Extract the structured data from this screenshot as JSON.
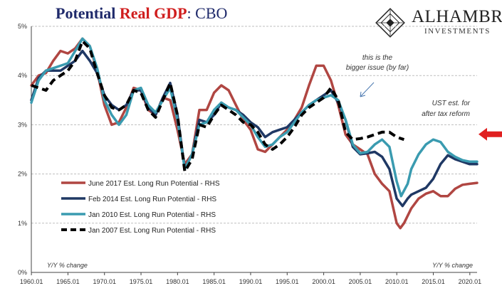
{
  "header": {
    "title_part1": "Potential ",
    "title_part2": "Real GDP",
    "title_part3": ":  CBO"
  },
  "logo": {
    "name": "ALHAMBRA",
    "sub": "INVESTMENTS"
  },
  "colors": {
    "june2017": "#b04642",
    "feb2014": "#1f3864",
    "jan2010": "#3a9bb0",
    "jan2007": "#000000",
    "arrow": "#e02020",
    "grid": "#bfbfbf"
  },
  "chart_data": {
    "type": "line",
    "xlabel_left": "Y/Y % change",
    "xlabel_right": "Y/Y % change",
    "ylim": [
      0,
      5
    ],
    "xlim": [
      1960,
      2021
    ],
    "y_ticks": [
      "0%",
      "1%",
      "2%",
      "3%",
      "4%",
      "5%"
    ],
    "x_ticks": [
      "1960.01",
      "1965.01",
      "1970.01",
      "1975.01",
      "1980.01",
      "1985.01",
      "1990.01",
      "1995.01",
      "2000.01",
      "2005.01",
      "2010.01",
      "2015.01",
      "2020.01"
    ],
    "legend_position": "lower-left",
    "annotations": {
      "note1_line1": "this is the",
      "note1_line2": "bigger issue (by far)",
      "note2_line1": "UST est. for",
      "note2_line2": "after tax reform"
    },
    "ust_estimate": 2.85,
    "series": [
      {
        "name": "June 2017 Est. Long Run Potential - RHS",
        "points": [
          [
            1960,
            3.8
          ],
          [
            1961,
            4.0
          ],
          [
            1962,
            4.05
          ],
          [
            1963,
            4.3
          ],
          [
            1964,
            4.5
          ],
          [
            1965,
            4.45
          ],
          [
            1966,
            4.55
          ],
          [
            1967,
            4.75
          ],
          [
            1968,
            4.6
          ],
          [
            1969,
            4.1
          ],
          [
            1970,
            3.4
          ],
          [
            1971,
            3.0
          ],
          [
            1972,
            3.05
          ],
          [
            1973,
            3.35
          ],
          [
            1974,
            3.75
          ],
          [
            1975,
            3.7
          ],
          [
            1976,
            3.3
          ],
          [
            1977,
            3.2
          ],
          [
            1978,
            3.55
          ],
          [
            1979,
            3.5
          ],
          [
            1980,
            2.9
          ],
          [
            1981,
            2.2
          ],
          [
            1982,
            2.4
          ],
          [
            1983,
            3.3
          ],
          [
            1984,
            3.3
          ],
          [
            1985,
            3.65
          ],
          [
            1986,
            3.8
          ],
          [
            1987,
            3.7
          ],
          [
            1988,
            3.4
          ],
          [
            1989,
            3.1
          ],
          [
            1990,
            2.9
          ],
          [
            1991,
            2.5
          ],
          [
            1992,
            2.45
          ],
          [
            1993,
            2.6
          ],
          [
            1994,
            2.75
          ],
          [
            1995,
            2.9
          ],
          [
            1996,
            3.1
          ],
          [
            1997,
            3.35
          ],
          [
            1998,
            3.8
          ],
          [
            1999,
            4.2
          ],
          [
            2000,
            4.2
          ],
          [
            2001,
            3.9
          ],
          [
            2002,
            3.4
          ],
          [
            2003,
            2.8
          ],
          [
            2004,
            2.6
          ],
          [
            2005,
            2.5
          ],
          [
            2006,
            2.4
          ],
          [
            2007,
            2.0
          ],
          [
            2008,
            1.8
          ],
          [
            2009,
            1.65
          ],
          [
            2010,
            1.0
          ],
          [
            2010.5,
            0.9
          ],
          [
            2011,
            1.0
          ],
          [
            2012,
            1.3
          ],
          [
            2013,
            1.5
          ],
          [
            2014,
            1.6
          ],
          [
            2015,
            1.65
          ],
          [
            2016,
            1.55
          ],
          [
            2017,
            1.55
          ],
          [
            2018,
            1.7
          ],
          [
            2019,
            1.78
          ],
          [
            2020,
            1.8
          ],
          [
            2021,
            1.82
          ]
        ]
      },
      {
        "name": "Feb 2014 Est. Long Run Potential - RHS",
        "points": [
          [
            1960,
            3.5
          ],
          [
            1961,
            3.95
          ],
          [
            1962,
            4.1
          ],
          [
            1963,
            4.1
          ],
          [
            1964,
            4.1
          ],
          [
            1965,
            4.2
          ],
          [
            1966,
            4.3
          ],
          [
            1967,
            4.5
          ],
          [
            1968,
            4.3
          ],
          [
            1969,
            4.05
          ],
          [
            1970,
            3.6
          ],
          [
            1971,
            3.4
          ],
          [
            1972,
            3.3
          ],
          [
            1973,
            3.4
          ],
          [
            1974,
            3.7
          ],
          [
            1975,
            3.7
          ],
          [
            1976,
            3.35
          ],
          [
            1977,
            3.2
          ],
          [
            1978,
            3.55
          ],
          [
            1979,
            3.85
          ],
          [
            1980,
            3.2
          ],
          [
            1981,
            2.1
          ],
          [
            1982,
            2.4
          ],
          [
            1983,
            3.1
          ],
          [
            1984,
            3.05
          ],
          [
            1985,
            3.2
          ],
          [
            1986,
            3.45
          ],
          [
            1987,
            3.35
          ],
          [
            1988,
            3.3
          ],
          [
            1989,
            3.2
          ],
          [
            1990,
            3.05
          ],
          [
            1991,
            2.95
          ],
          [
            1992,
            2.75
          ],
          [
            1993,
            2.85
          ],
          [
            1994,
            2.9
          ],
          [
            1995,
            2.95
          ],
          [
            1996,
            3.1
          ],
          [
            1997,
            3.25
          ],
          [
            1998,
            3.4
          ],
          [
            1999,
            3.5
          ],
          [
            2000,
            3.6
          ],
          [
            2001,
            3.7
          ],
          [
            2002,
            3.45
          ],
          [
            2003,
            3.1
          ],
          [
            2004,
            2.55
          ],
          [
            2005,
            2.4
          ],
          [
            2006,
            2.42
          ],
          [
            2007,
            2.45
          ],
          [
            2008,
            2.35
          ],
          [
            2009,
            2.1
          ],
          [
            2010,
            1.5
          ],
          [
            2010.8,
            1.35
          ],
          [
            2011.5,
            1.5
          ],
          [
            2012,
            1.58
          ],
          [
            2013,
            1.65
          ],
          [
            2014,
            1.72
          ],
          [
            2015,
            1.9
          ],
          [
            2016,
            2.2
          ],
          [
            2017,
            2.38
          ],
          [
            2018,
            2.3
          ],
          [
            2019,
            2.25
          ],
          [
            2020,
            2.2
          ],
          [
            2021,
            2.2
          ]
        ]
      },
      {
        "name": "Jan 2010 Est. Long Run Potential - RHS",
        "points": [
          [
            1960,
            3.45
          ],
          [
            1961,
            3.9
          ],
          [
            1962,
            4.1
          ],
          [
            1963,
            4.15
          ],
          [
            1964,
            4.2
          ],
          [
            1965,
            4.25
          ],
          [
            1966,
            4.5
          ],
          [
            1967,
            4.75
          ],
          [
            1968,
            4.6
          ],
          [
            1969,
            4.15
          ],
          [
            1970,
            3.5
          ],
          [
            1971,
            3.2
          ],
          [
            1972,
            3.0
          ],
          [
            1973,
            3.2
          ],
          [
            1974,
            3.7
          ],
          [
            1975,
            3.75
          ],
          [
            1976,
            3.4
          ],
          [
            1977,
            3.25
          ],
          [
            1978,
            3.5
          ],
          [
            1979,
            3.75
          ],
          [
            1980,
            3.1
          ],
          [
            1981,
            2.1
          ],
          [
            1982,
            2.4
          ],
          [
            1983,
            3.0
          ],
          [
            1984,
            3.05
          ],
          [
            1985,
            3.3
          ],
          [
            1986,
            3.45
          ],
          [
            1987,
            3.35
          ],
          [
            1988,
            3.3
          ],
          [
            1989,
            3.15
          ],
          [
            1990,
            3.0
          ],
          [
            1991,
            2.75
          ],
          [
            1992,
            2.55
          ],
          [
            1993,
            2.6
          ],
          [
            1994,
            2.75
          ],
          [
            1995,
            2.85
          ],
          [
            1996,
            3.05
          ],
          [
            1997,
            3.25
          ],
          [
            1998,
            3.4
          ],
          [
            1999,
            3.5
          ],
          [
            2000,
            3.55
          ],
          [
            2001,
            3.6
          ],
          [
            2002,
            3.5
          ],
          [
            2003,
            3.1
          ],
          [
            2004,
            2.6
          ],
          [
            2005,
            2.42
          ],
          [
            2006,
            2.45
          ],
          [
            2007,
            2.6
          ],
          [
            2008,
            2.7
          ],
          [
            2009,
            2.55
          ],
          [
            2010,
            1.85
          ],
          [
            2010.6,
            1.55
          ],
          [
            2011.5,
            1.8
          ],
          [
            2012,
            2.1
          ],
          [
            2013,
            2.4
          ],
          [
            2014,
            2.6
          ],
          [
            2015,
            2.7
          ],
          [
            2016,
            2.65
          ],
          [
            2017,
            2.45
          ],
          [
            2018,
            2.35
          ],
          [
            2019,
            2.28
          ],
          [
            2020,
            2.25
          ],
          [
            2021,
            2.25
          ]
        ]
      },
      {
        "name": "Jan 2007 Est. Long Run Potential - RHS",
        "dashed": true,
        "points": [
          [
            1960,
            3.8
          ],
          [
            1961,
            3.75
          ],
          [
            1962,
            3.7
          ],
          [
            1963,
            3.9
          ],
          [
            1964,
            4.0
          ],
          [
            1965,
            4.1
          ],
          [
            1966,
            4.3
          ],
          [
            1967,
            4.7
          ],
          [
            1968,
            4.55
          ],
          [
            1969,
            4.05
          ],
          [
            1970,
            3.6
          ],
          [
            1971,
            3.35
          ],
          [
            1972,
            3.3
          ],
          [
            1973,
            3.4
          ],
          [
            1974,
            3.7
          ],
          [
            1975,
            3.65
          ],
          [
            1976,
            3.3
          ],
          [
            1977,
            3.15
          ],
          [
            1978,
            3.5
          ],
          [
            1979,
            3.85
          ],
          [
            1980,
            3.2
          ],
          [
            1981,
            2.05
          ],
          [
            1982,
            2.3
          ],
          [
            1983,
            3.0
          ],
          [
            1984,
            2.95
          ],
          [
            1985,
            3.2
          ],
          [
            1986,
            3.4
          ],
          [
            1987,
            3.3
          ],
          [
            1988,
            3.2
          ],
          [
            1989,
            3.05
          ],
          [
            1990,
            3.0
          ],
          [
            1991,
            2.85
          ],
          [
            1992,
            2.6
          ],
          [
            1993,
            2.5
          ],
          [
            1994,
            2.6
          ],
          [
            1995,
            2.75
          ],
          [
            1996,
            2.95
          ],
          [
            1997,
            3.2
          ],
          [
            1998,
            3.35
          ],
          [
            1999,
            3.45
          ],
          [
            2000,
            3.55
          ],
          [
            2001,
            3.75
          ],
          [
            2002,
            3.5
          ],
          [
            2003,
            2.85
          ],
          [
            2004,
            2.7
          ],
          [
            2005,
            2.72
          ],
          [
            2006,
            2.75
          ],
          [
            2007,
            2.8
          ],
          [
            2008,
            2.85
          ],
          [
            2009,
            2.85
          ],
          [
            2010,
            2.75
          ],
          [
            2011,
            2.7
          ]
        ]
      }
    ]
  }
}
